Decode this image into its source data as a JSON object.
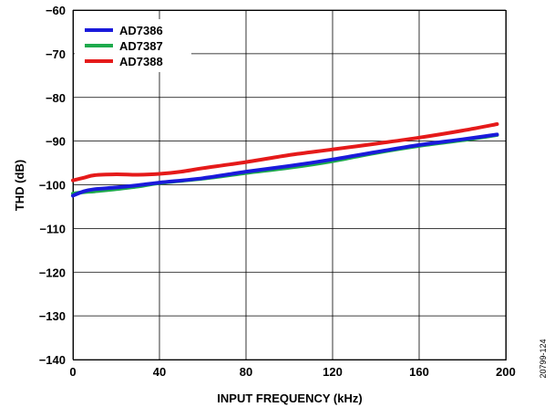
{
  "chart_data": {
    "type": "line",
    "title": "",
    "xlabel": "INPUT FREQUENCY (kHz)",
    "ylabel": "THD (dB)",
    "xlim": [
      0,
      200
    ],
    "ylim": [
      -140,
      -60
    ],
    "x_ticks": [
      "0",
      "40",
      "80",
      "120",
      "160",
      "200"
    ],
    "y_ticks": [
      "−60",
      "−70",
      "−80",
      "−90",
      "−100",
      "−110",
      "−120",
      "−130",
      "−140"
    ],
    "grid": true,
    "legend_position": "top-left",
    "series": [
      {
        "name": "AD7386",
        "color": "#1a1adb",
        "points": [
          [
            0,
            -102.5
          ],
          [
            5,
            -101.5
          ],
          [
            10,
            -101
          ],
          [
            20,
            -100.6
          ],
          [
            30,
            -100.1
          ],
          [
            40,
            -99.5
          ],
          [
            60,
            -98.5
          ],
          [
            80,
            -97
          ],
          [
            100,
            -95.7
          ],
          [
            120,
            -94.2
          ],
          [
            140,
            -92.5
          ],
          [
            160,
            -90.9
          ],
          [
            180,
            -89.6
          ],
          [
            196,
            -88.5
          ]
        ]
      },
      {
        "name": "AD7387",
        "color": "#1eaa4c",
        "points": [
          [
            0,
            -102
          ],
          [
            5,
            -101.7
          ],
          [
            10,
            -101.5
          ],
          [
            20,
            -101
          ],
          [
            30,
            -100.4
          ],
          [
            40,
            -99.6
          ],
          [
            60,
            -98.6
          ],
          [
            80,
            -97.3
          ],
          [
            100,
            -96.1
          ],
          [
            120,
            -94.6
          ],
          [
            140,
            -92.7
          ],
          [
            160,
            -91.1
          ],
          [
            180,
            -89.8
          ],
          [
            196,
            -88.6
          ]
        ]
      },
      {
        "name": "AD7388",
        "color": "#e51a1a",
        "points": [
          [
            0,
            -99
          ],
          [
            5,
            -98.4
          ],
          [
            10,
            -97.8
          ],
          [
            20,
            -97.6
          ],
          [
            30,
            -97.7
          ],
          [
            40,
            -97.5
          ],
          [
            50,
            -97
          ],
          [
            60,
            -96.2
          ],
          [
            80,
            -94.8
          ],
          [
            100,
            -93.2
          ],
          [
            120,
            -91.9
          ],
          [
            140,
            -90.6
          ],
          [
            160,
            -89.2
          ],
          [
            180,
            -87.6
          ],
          [
            196,
            -86.1
          ]
        ]
      }
    ]
  },
  "figure_code": "20799-124"
}
